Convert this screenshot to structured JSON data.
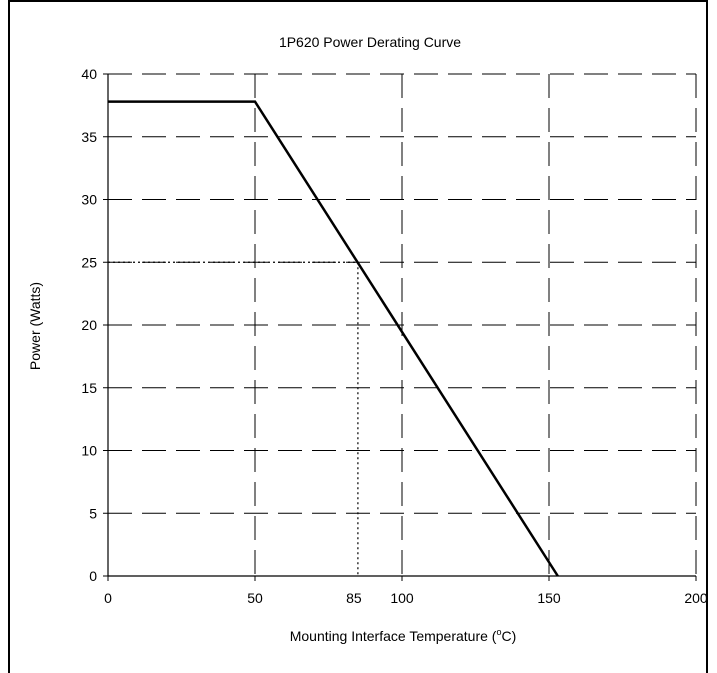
{
  "chart_data": {
    "type": "line",
    "title": "1P620 Power Derating Curve",
    "xlabel": "Mounting Interface Temperature (",
    "xlabel_sup": "o",
    "xlabel_end": "C)",
    "ylabel": "Power (Watts)",
    "xlim": [
      0,
      200
    ],
    "ylim": [
      0,
      40
    ],
    "x_ticks": [
      0,
      50,
      85,
      100,
      150,
      200
    ],
    "x_tick_labels": [
      "0",
      "50",
      "85",
      "100",
      "150",
      "200"
    ],
    "x_gridlines": [
      50,
      100,
      150,
      200
    ],
    "y_ticks": [
      0,
      5,
      10,
      15,
      20,
      25,
      30,
      35,
      40
    ],
    "y_tick_labels": [
      "0",
      "5",
      "10",
      "15",
      "20",
      "25",
      "30",
      "35",
      "40"
    ],
    "grid": true,
    "series": [
      {
        "x": [
          0,
          50,
          153
        ],
        "y": [
          37.8,
          37.8,
          0
        ],
        "color": "#000000"
      }
    ],
    "reference_point": {
      "x": 85,
      "y": 25
    }
  }
}
